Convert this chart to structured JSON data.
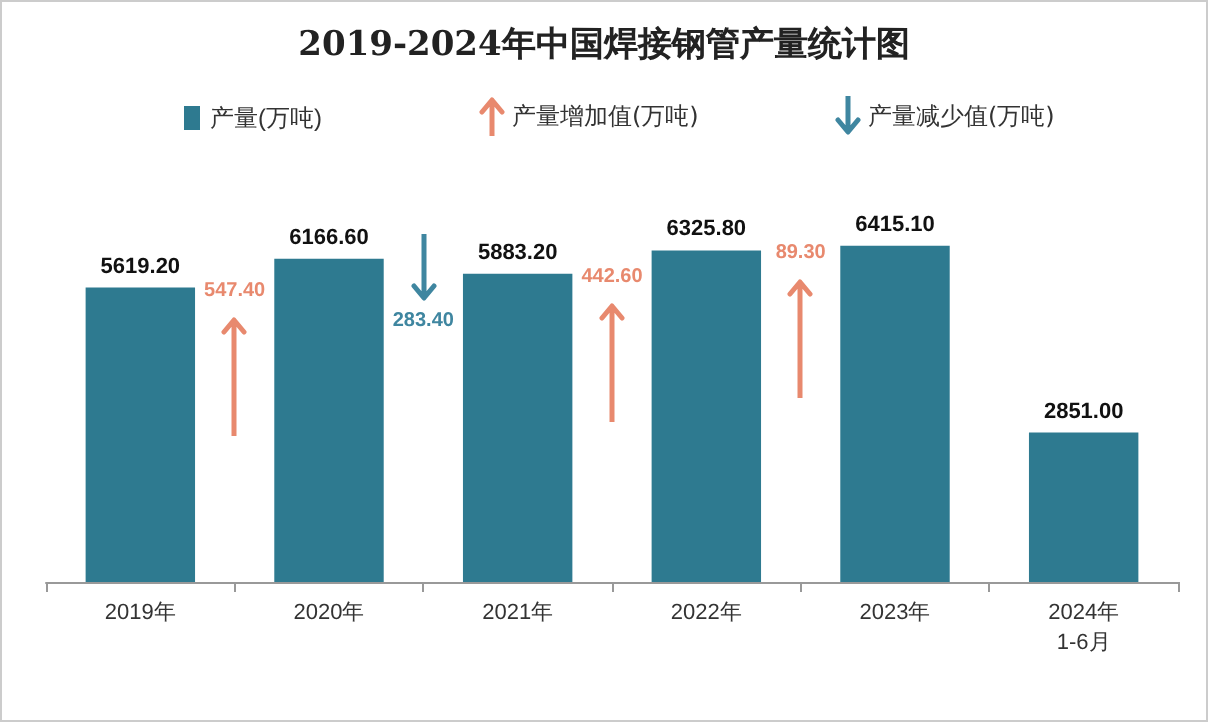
{
  "chart_data": {
    "type": "bar",
    "title": "2019-2024年中国焊接钢管产量统计图",
    "categories": [
      "2019年",
      "2020年",
      "2021年",
      "2022年",
      "2023年",
      "2024年\n1-6月"
    ],
    "series": [
      {
        "name": "产量(万吨)",
        "color": "#2e7a90",
        "values": [
          5619.2,
          6166.6,
          5883.2,
          6325.8,
          6415.1,
          2851.0
        ],
        "value_labels": [
          "5619.20",
          "6166.60",
          "5883.20",
          "6325.80",
          "6415.10",
          "2851.00"
        ]
      }
    ],
    "legend": "top",
    "annotations": [
      "产量增加值(万吨)",
      "产量减少值(万吨)",
      "547.40",
      "283.40",
      "442.60",
      "89.30"
    ]
  }
}
